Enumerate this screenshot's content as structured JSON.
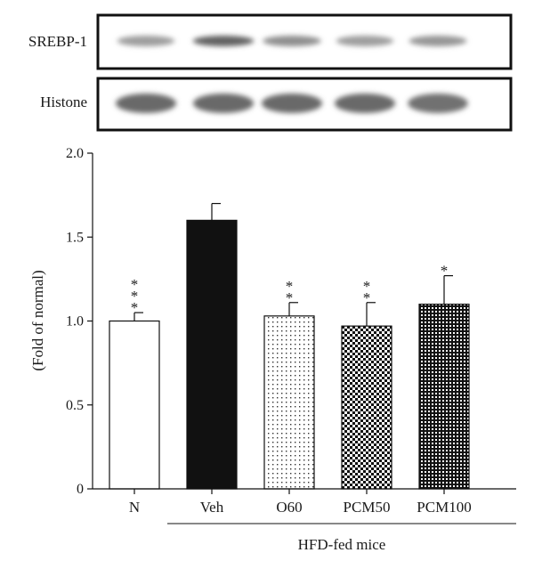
{
  "blots": [
    {
      "label": "SREBP-1",
      "band_intensity": [
        0.45,
        0.85,
        0.55,
        0.45,
        0.5
      ]
    },
    {
      "label": "Histone",
      "band_intensity": [
        0.8,
        0.8,
        0.8,
        0.8,
        0.75
      ]
    }
  ],
  "chart_data": {
    "type": "bar",
    "categories": [
      "N",
      "Veh",
      "O60",
      "PCM50",
      "PCM100"
    ],
    "values": [
      1.0,
      1.6,
      1.03,
      0.97,
      1.1
    ],
    "errors": [
      0.05,
      0.1,
      0.08,
      0.14,
      0.17
    ],
    "significance": [
      "*\n*\n*",
      "",
      "*\n*",
      "*\n*",
      "*"
    ],
    "fills": [
      "white",
      "black",
      "sparse-dots",
      "checker",
      "dense-dots"
    ],
    "title": "",
    "xlabel": "",
    "ylabel": "(Fold of normal)",
    "ylim": [
      0,
      2.0
    ],
    "yticks": [
      "0",
      "0.5",
      "1.0",
      "1.5",
      "2.0"
    ],
    "group_label": "HFD-fed mice",
    "group_categories": [
      "Veh",
      "O60",
      "PCM50",
      "PCM100"
    ]
  }
}
